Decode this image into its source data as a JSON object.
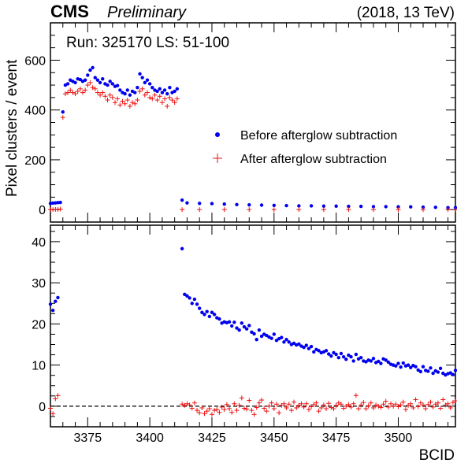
{
  "header": {
    "experiment": "CMS",
    "status": "Preliminary",
    "energy": "(2018, 13 TeV)"
  },
  "colors": {
    "before": "#0000ee",
    "after": "#ee1111"
  },
  "chart_data": [
    {
      "type": "scatter",
      "annotation": "Run: 325170 LS: 51-100",
      "xlabel": "BCID",
      "ylabel": "Pixel clusters / event",
      "xlim": [
        3360,
        3523
      ],
      "ylim": [
        -50,
        750
      ],
      "yticks": [
        0,
        200,
        400,
        600
      ],
      "legend_position": "right",
      "series": [
        {
          "name": "Before afterglow subtraction",
          "marker": "dot",
          "x": [
            3360,
            3361,
            3362,
            3363,
            3364,
            3365,
            3366,
            3367,
            3368,
            3369,
            3370,
            3371,
            3372,
            3373,
            3374,
            3375,
            3376,
            3377,
            3378,
            3379,
            3380,
            3381,
            3382,
            3383,
            3384,
            3385,
            3386,
            3387,
            3388,
            3389,
            3390,
            3391,
            3392,
            3393,
            3394,
            3395,
            3396,
            3397,
            3398,
            3399,
            3400,
            3401,
            3402,
            3403,
            3404,
            3405,
            3406,
            3407,
            3408,
            3409,
            3410,
            3411,
            3413,
            3415,
            3420,
            3425,
            3430,
            3435,
            3440,
            3445,
            3450,
            3455,
            3460,
            3465,
            3470,
            3475,
            3480,
            3485,
            3490,
            3495,
            3500,
            3505,
            3510,
            3515,
            3520,
            3523
          ],
          "y": [
            25,
            26,
            27,
            28,
            29,
            392,
            500,
            505,
            520,
            515,
            510,
            525,
            522,
            515,
            520,
            540,
            560,
            570,
            530,
            520,
            510,
            525,
            505,
            500,
            515,
            505,
            495,
            498,
            480,
            470,
            465,
            480,
            460,
            475,
            470,
            490,
            545,
            530,
            510,
            520,
            505,
            490,
            480,
            475,
            485,
            470,
            480,
            465,
            490,
            470,
            475,
            485,
            38,
            27,
            25,
            24,
            22,
            20,
            19,
            18,
            17,
            16,
            15,
            15,
            14,
            14,
            13,
            13,
            12,
            12,
            11,
            11,
            10,
            9,
            8,
            8
          ]
        },
        {
          "name": "After afterglow subtraction",
          "marker": "plus",
          "x": [
            3360,
            3361,
            3362,
            3363,
            3364,
            3365,
            3366,
            3367,
            3368,
            3369,
            3370,
            3371,
            3372,
            3373,
            3374,
            3375,
            3376,
            3377,
            3378,
            3379,
            3380,
            3381,
            3382,
            3383,
            3384,
            3385,
            3386,
            3387,
            3388,
            3389,
            3390,
            3391,
            3392,
            3393,
            3394,
            3395,
            3396,
            3397,
            3398,
            3399,
            3400,
            3401,
            3402,
            3403,
            3404,
            3405,
            3406,
            3407,
            3408,
            3409,
            3410,
            3411,
            3413,
            3420,
            3430,
            3440,
            3450,
            3460,
            3470,
            3480,
            3490,
            3500,
            3510,
            3520,
            3523
          ],
          "y": [
            0,
            0,
            1,
            1,
            2,
            370,
            465,
            470,
            480,
            470,
            465,
            475,
            485,
            470,
            480,
            500,
            510,
            490,
            485,
            470,
            460,
            470,
            455,
            440,
            460,
            450,
            430,
            445,
            420,
            435,
            425,
            440,
            415,
            430,
            425,
            440,
            475,
            485,
            460,
            470,
            450,
            445,
            460,
            440,
            455,
            430,
            445,
            415,
            450,
            440,
            430,
            445,
            0,
            0,
            0,
            0,
            0,
            0,
            0,
            0,
            0,
            0,
            0,
            0,
            0
          ]
        }
      ]
    },
    {
      "type": "scatter",
      "xlabel": "BCID",
      "ylabel": "",
      "xlim": [
        3360,
        3523
      ],
      "ylim": [
        -5,
        44
      ],
      "xticks": [
        3375,
        3400,
        3425,
        3450,
        3475,
        3500
      ],
      "yticks": [
        0,
        10,
        20,
        30,
        40
      ],
      "reference_line": 0,
      "series": [
        {
          "name": "Before afterglow subtraction",
          "marker": "dot",
          "x": [
            3360,
            3361,
            3362,
            3363,
            3413,
            3414,
            3415,
            3416,
            3417,
            3418,
            3419,
            3420,
            3421,
            3422,
            3423,
            3424,
            3425,
            3426,
            3427,
            3428,
            3429,
            3430,
            3431,
            3432,
            3433,
            3434,
            3435,
            3436,
            3437,
            3438,
            3439,
            3440,
            3441,
            3442,
            3443,
            3444,
            3445,
            3446,
            3447,
            3448,
            3449,
            3450,
            3451,
            3452,
            3453,
            3454,
            3455,
            3456,
            3457,
            3458,
            3459,
            3460,
            3461,
            3462,
            3463,
            3464,
            3465,
            3466,
            3467,
            3468,
            3469,
            3470,
            3471,
            3472,
            3473,
            3474,
            3475,
            3476,
            3477,
            3478,
            3479,
            3480,
            3481,
            3482,
            3483,
            3484,
            3485,
            3486,
            3487,
            3488,
            3489,
            3490,
            3491,
            3492,
            3493,
            3494,
            3495,
            3496,
            3497,
            3498,
            3499,
            3500,
            3501,
            3502,
            3503,
            3504,
            3505,
            3506,
            3507,
            3508,
            3509,
            3510,
            3511,
            3512,
            3513,
            3514,
            3515,
            3516,
            3517,
            3518,
            3519,
            3520,
            3521,
            3522,
            3523
          ],
          "y": [
            24.8,
            23.3,
            25.5,
            26.4,
            38.3,
            27.2,
            26.8,
            26.3,
            25.0,
            26.0,
            24.8,
            23.8,
            22.8,
            22.3,
            23.0,
            21.8,
            22.8,
            22.3,
            21.5,
            21.2,
            20.2,
            20.5,
            20.3,
            20.5,
            19.5,
            20.4,
            19.0,
            18.5,
            20.2,
            19.3,
            18.8,
            19.6,
            18.0,
            17.6,
            16.2,
            18.5,
            17.0,
            17.5,
            17.2,
            16.8,
            16.5,
            17.5,
            16.0,
            16.4,
            16.7,
            15.6,
            16.2,
            15.6,
            15.0,
            15.3,
            14.9,
            15.1,
            14.6,
            14.3,
            14.8,
            14.0,
            14.5,
            13.2,
            13.8,
            13.5,
            13.0,
            13.2,
            13.5,
            12.7,
            12.2,
            13.0,
            12.6,
            11.8,
            12.8,
            12.0,
            11.4,
            12.4,
            12.0,
            11.0,
            12.6,
            11.5,
            11.8,
            11.0,
            10.8,
            11.2,
            11.0,
            11.6,
            10.6,
            10.9,
            10.4,
            11.5,
            11.2,
            10.7,
            10.2,
            10.0,
            9.8,
            10.4,
            9.5,
            10.5,
            9.8,
            10.0,
            9.4,
            9.9,
            9.6,
            8.8,
            8.4,
            9.6,
            8.7,
            8.5,
            9.3,
            8.0,
            8.6,
            8.3,
            9.2,
            8.0,
            7.6,
            7.9,
            8.1,
            7.7,
            8.7
          ]
        },
        {
          "name": "After afterglow subtraction",
          "marker": "plus",
          "x": [
            3360,
            3361,
            3362,
            3363,
            3413,
            3414,
            3415,
            3416,
            3417,
            3418,
            3419,
            3420,
            3421,
            3422,
            3423,
            3424,
            3425,
            3426,
            3427,
            3428,
            3429,
            3430,
            3431,
            3432,
            3433,
            3434,
            3435,
            3436,
            3437,
            3438,
            3439,
            3440,
            3441,
            3442,
            3443,
            3444,
            3445,
            3446,
            3447,
            3448,
            3449,
            3450,
            3451,
            3452,
            3453,
            3454,
            3455,
            3456,
            3457,
            3458,
            3459,
            3460,
            3461,
            3462,
            3463,
            3464,
            3465,
            3466,
            3467,
            3468,
            3469,
            3470,
            3471,
            3472,
            3473,
            3474,
            3475,
            3476,
            3477,
            3478,
            3479,
            3480,
            3481,
            3482,
            3483,
            3484,
            3485,
            3486,
            3487,
            3488,
            3489,
            3490,
            3491,
            3492,
            3493,
            3494,
            3495,
            3496,
            3497,
            3498,
            3499,
            3500,
            3501,
            3502,
            3503,
            3504,
            3505,
            3506,
            3507,
            3508,
            3509,
            3510,
            3511,
            3512,
            3513,
            3514,
            3515,
            3516,
            3517,
            3518,
            3519,
            3520,
            3521,
            3522,
            3523
          ],
          "y": [
            -0.5,
            -1.8,
            1.8,
            2.6,
            0.5,
            0.2,
            0.6,
            0.3,
            -0.5,
            0.8,
            -1.0,
            -1.6,
            -0.4,
            -1.8,
            -1.2,
            -0.6,
            -2.0,
            -1.0,
            -0.8,
            -1.5,
            -0.2,
            -0.8,
            0.4,
            -0.6,
            -1.5,
            0.6,
            -1.0,
            0.2,
            2.0,
            -0.5,
            -0.7,
            1.4,
            -1.0,
            -2.0,
            -0.3,
            0.8,
            1.5,
            -0.5,
            -1.2,
            0.0,
            0.8,
            -0.6,
            0.5,
            -1.6,
            0.2,
            0.6,
            -0.4,
            0.5,
            -1.0,
            1.0,
            -0.4,
            0.2,
            0.6,
            -0.2,
            0.6,
            -0.8,
            -0.1,
            0.4,
            0.8,
            -1.2,
            -0.4,
            0.3,
            -0.6,
            0.7,
            -0.3,
            -0.6,
            0.2,
            0.8,
            0.5,
            -0.5,
            0.0,
            0.4,
            -0.2,
            0.6,
            2.6,
            -0.6,
            0.3,
            0.9,
            -0.6,
            0.1,
            0.8,
            -0.4,
            0.3,
            0.0,
            -0.3,
            0.5,
            1.2,
            -0.2,
            0.6,
            0.0,
            0.5,
            -0.1,
            0.3,
            1.0,
            -0.8,
            0.2,
            0.6,
            -0.4,
            1.6,
            -0.1,
            0.8,
            0.3,
            -0.6,
            0.4,
            1.0,
            -0.2,
            0.5,
            0.8,
            -0.5,
            1.6,
            0.3,
            0.6,
            -0.4,
            0.9,
            1.3
          ]
        }
      ]
    }
  ]
}
